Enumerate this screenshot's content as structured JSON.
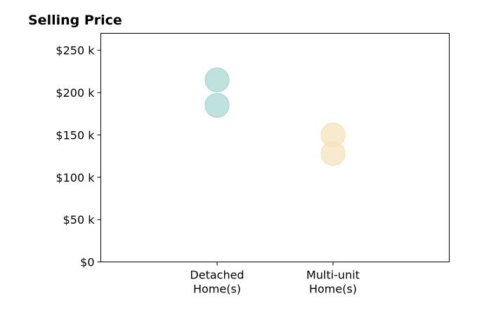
{
  "chart_data": {
    "type": "scatter",
    "title": "Selling Price",
    "xlabel": "",
    "ylabel": "",
    "categories": [
      [
        "Detached",
        "Home(s)"
      ],
      [
        "Multi-unit",
        "Home(s)"
      ]
    ],
    "series": [
      {
        "category_index": 0,
        "values": [
          215000,
          185000
        ],
        "color": "#a8d8d2"
      },
      {
        "category_index": 1,
        "values": [
          150000,
          128000
        ],
        "color": "#f6e3bb"
      }
    ],
    "ylim": [
      0,
      270000
    ],
    "yticks": [
      0,
      50000,
      100000,
      150000,
      200000,
      250000
    ],
    "ytick_labels": [
      "$0",
      "$50 k",
      "$100 k",
      "$150 k",
      "$200 k",
      "$250 k"
    ],
    "grid": false,
    "legend": "none"
  }
}
